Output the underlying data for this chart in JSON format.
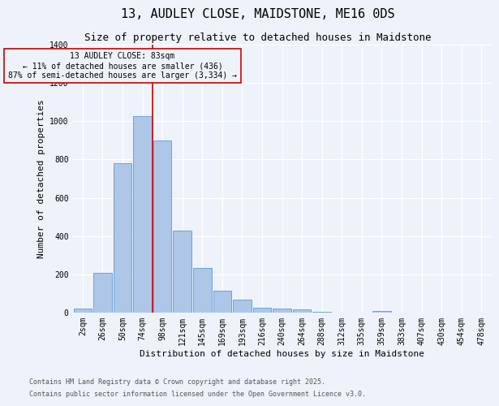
{
  "title": "13, AUDLEY CLOSE, MAIDSTONE, ME16 0DS",
  "subtitle": "Size of property relative to detached houses in Maidstone",
  "xlabel": "Distribution of detached houses by size in Maidstone",
  "ylabel": "Number of detached properties",
  "footnote1": "Contains HM Land Registry data © Crown copyright and database right 2025.",
  "footnote2": "Contains public sector information licensed under the Open Government Licence v3.0.",
  "bar_labels": [
    "2sqm",
    "26sqm",
    "50sqm",
    "74sqm",
    "98sqm",
    "121sqm",
    "145sqm",
    "169sqm",
    "193sqm",
    "216sqm",
    "240sqm",
    "264sqm",
    "288sqm",
    "312sqm",
    "335sqm",
    "359sqm",
    "383sqm",
    "407sqm",
    "430sqm",
    "454sqm",
    "478sqm"
  ],
  "bar_values": [
    20,
    210,
    780,
    1025,
    900,
    430,
    235,
    115,
    70,
    25,
    22,
    15,
    5,
    0,
    0,
    10,
    0,
    0,
    0,
    0,
    0
  ],
  "bar_color": "#aec6e8",
  "bar_edge_color": "#5b9bd5",
  "background_color": "#eef3fb",
  "grid_color": "#ffffff",
  "vline_color": "#cc0000",
  "annotation_text": "13 AUDLEY CLOSE: 83sqm\n← 11% of detached houses are smaller (436)\n87% of semi-detached houses are larger (3,334) →",
  "annotation_box_color": "#cc0000",
  "ylim": [
    0,
    1400
  ],
  "yticks": [
    0,
    200,
    400,
    600,
    800,
    1000,
    1200,
    1400
  ],
  "title_fontsize": 11,
  "subtitle_fontsize": 9,
  "label_fontsize": 8,
  "tick_fontsize": 7,
  "annot_fontsize": 7,
  "footnote_fontsize": 6
}
